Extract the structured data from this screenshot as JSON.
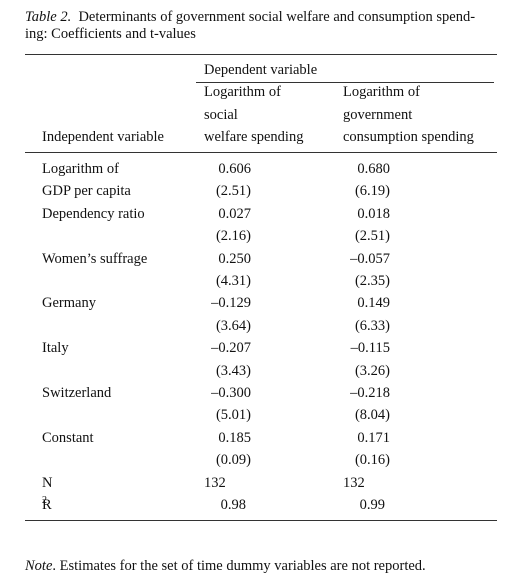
{
  "caption": {
    "label": "Table 2.",
    "title_lines": [
      "Determinants of government social welfare and consumption spend-",
      "ing: Coefficients and t-values"
    ]
  },
  "table": {
    "spanner": "Dependent variable",
    "stub_header": "Independent variable",
    "columns": [
      [
        "Logarithm of",
        "social",
        "welfare spending"
      ],
      [
        "Logarithm of",
        "government",
        "consumption spending"
      ]
    ],
    "rows": [
      {
        "label": "Logarithm of",
        "values": [
          "0.606",
          "0.680"
        ]
      },
      {
        "label": "GDP per capita",
        "values": [
          "(2.51)",
          "(6.19)"
        ]
      },
      {
        "label": "Dependency ratio",
        "values": [
          "0.027",
          "0.018"
        ]
      },
      {
        "values": [
          "(2.16)",
          "(2.51)"
        ]
      },
      {
        "label": "Women’s suffrage",
        "values": [
          "0.250",
          "–0.057"
        ]
      },
      {
        "values": [
          "(4.31)",
          "(2.35)"
        ]
      },
      {
        "label": "Germany",
        "values": [
          "–0.129",
          "0.149"
        ]
      },
      {
        "values": [
          "(3.64)",
          "(6.33)"
        ]
      },
      {
        "label": "Italy",
        "values": [
          "–0.207",
          "–0.115"
        ]
      },
      {
        "values": [
          "(3.43)",
          "(3.26)"
        ]
      },
      {
        "label": "Switzerland",
        "values": [
          "–0.300",
          "–0.218"
        ]
      },
      {
        "values": [
          "(5.01)",
          "(8.04)"
        ]
      },
      {
        "label": "Constant",
        "values": [
          "0.185",
          "0.171"
        ]
      },
      {
        "values": [
          "(0.09)",
          "(0.16)"
        ]
      },
      {
        "label": "N",
        "values": [
          "132",
          "132"
        ]
      },
      {
        "label": "R",
        "label_sup": "2",
        "values": [
          "0.98",
          "0.99"
        ]
      }
    ]
  },
  "note": {
    "label": "Note",
    "text": ". Estimates for the set of time dummy variables are not reported."
  }
}
